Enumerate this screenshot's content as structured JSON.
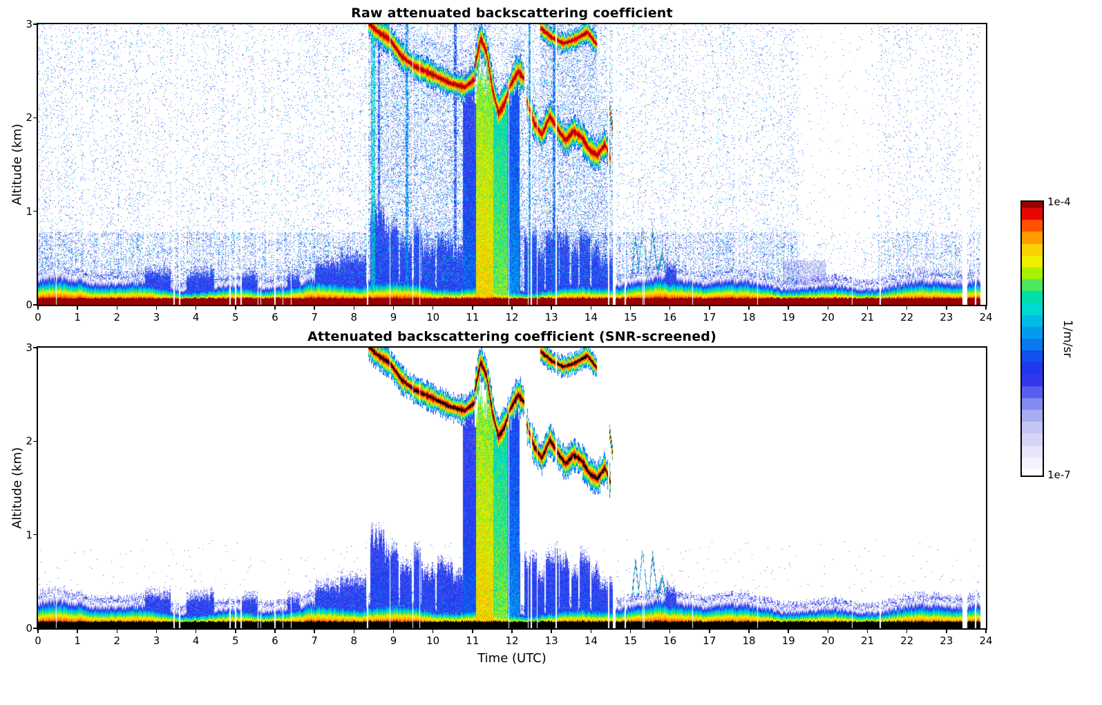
{
  "chart_data": {
    "type": "heatmap",
    "data_end": 23.85,
    "x": {
      "label": "Time (UTC)",
      "min": 0,
      "max": 24,
      "ticks": [
        "0",
        "1",
        "2",
        "3",
        "4",
        "5",
        "6",
        "7",
        "8",
        "9",
        "10",
        "11",
        "12",
        "13",
        "14",
        "15",
        "16",
        "17",
        "18",
        "19",
        "20",
        "21",
        "22",
        "23",
        "24"
      ]
    },
    "y": {
      "label": "Altitude (km)",
      "min": 0,
      "max": 3,
      "ticks": [
        "0",
        "1",
        "2",
        "3"
      ]
    },
    "value": {
      "scale": "log",
      "min": 1e-07,
      "max": 0.0001
    },
    "panels": [
      {
        "title": "Raw attenuated backscattering coefficient",
        "screened": false
      },
      {
        "title": "Attenuated backscattering coefficient (SNR-screened)",
        "screened": true,
        "xlabel": "Time (UTC)"
      }
    ],
    "colorbar": {
      "unit": "1/m/sr",
      "max_label": "1e-4",
      "min_label": "1e-7",
      "stops": [
        [
          0.0,
          "#ffffff"
        ],
        [
          0.06,
          "#efeefb"
        ],
        [
          0.12,
          "#ddd8f7"
        ],
        [
          0.18,
          "#c2c3f5"
        ],
        [
          0.24,
          "#98a0f0"
        ],
        [
          0.3,
          "#5a64ee"
        ],
        [
          0.36,
          "#2a2cee"
        ],
        [
          0.42,
          "#1542f0"
        ],
        [
          0.48,
          "#0a7af0"
        ],
        [
          0.54,
          "#00aaf0"
        ],
        [
          0.6,
          "#00d8d8"
        ],
        [
          0.66,
          "#00e0a0"
        ],
        [
          0.7,
          "#55e855"
        ],
        [
          0.74,
          "#aaf000"
        ],
        [
          0.78,
          "#f0f000"
        ],
        [
          0.84,
          "#ffc800"
        ],
        [
          0.88,
          "#ff8c00"
        ],
        [
          0.92,
          "#ff4600"
        ],
        [
          0.96,
          "#e60000"
        ],
        [
          1.0,
          "#990000"
        ]
      ]
    },
    "features": {
      "cloud_paths": [
        {
          "w": 0.13,
          "pts": [
            [
              8.35,
              3.02
            ],
            [
              8.6,
              2.92
            ],
            [
              8.9,
              2.84
            ],
            [
              9.2,
              2.66
            ],
            [
              9.5,
              2.56
            ],
            [
              9.8,
              2.5
            ],
            [
              10.1,
              2.44
            ],
            [
              10.45,
              2.37
            ],
            [
              10.8,
              2.33
            ],
            [
              11.05,
              2.42
            ]
          ]
        },
        {
          "w": 0.17,
          "pts": [
            [
              11.05,
              2.55
            ],
            [
              11.2,
              2.85
            ],
            [
              11.35,
              2.7
            ],
            [
              11.5,
              2.3
            ],
            [
              11.65,
              2.05
            ],
            [
              11.8,
              2.15
            ],
            [
              11.95,
              2.35
            ],
            [
              12.15,
              2.5
            ],
            [
              12.3,
              2.42
            ]
          ]
        },
        {
          "w": 0.15,
          "pts": [
            [
              12.35,
              2.2
            ],
            [
              12.55,
              1.95
            ],
            [
              12.75,
              1.82
            ],
            [
              12.95,
              2.02
            ],
            [
              13.15,
              1.88
            ],
            [
              13.35,
              1.76
            ],
            [
              13.55,
              1.86
            ],
            [
              13.75,
              1.8
            ],
            [
              13.95,
              1.66
            ],
            [
              14.15,
              1.6
            ],
            [
              14.35,
              1.72
            ],
            [
              14.5,
              1.55
            ]
          ]
        },
        {
          "w": 0.1,
          "pts": [
            [
              12.7,
              2.97
            ],
            [
              13.0,
              2.86
            ],
            [
              13.3,
              2.8
            ],
            [
              13.6,
              2.84
            ],
            [
              13.9,
              2.92
            ],
            [
              14.15,
              2.78
            ]
          ]
        },
        {
          "w": 0.07,
          "pts": [
            [
              14.45,
              2.15
            ],
            [
              14.55,
              1.85
            ],
            [
              14.62,
              1.55
            ]
          ]
        }
      ],
      "precip_columns": [
        [
          10.75,
          11.08,
          2.35,
          -5.7
        ],
        [
          11.08,
          11.52,
          2.45,
          -4.55
        ],
        [
          11.52,
          11.88,
          2.2,
          -4.85
        ],
        [
          11.88,
          12.18,
          2.35,
          -5.5
        ]
      ],
      "bl_blobs": [
        [
          2.7,
          3.35,
          0.34
        ],
        [
          3.75,
          4.45,
          0.33
        ],
        [
          5.15,
          5.55,
          0.3
        ],
        [
          6.3,
          6.6,
          0.3
        ],
        [
          7.0,
          7.65,
          0.42
        ],
        [
          7.65,
          8.3,
          0.5
        ],
        [
          8.4,
          8.78,
          0.95
        ],
        [
          8.78,
          9.12,
          0.8
        ],
        [
          9.15,
          9.45,
          0.62
        ],
        [
          9.5,
          9.68,
          0.8
        ],
        [
          9.7,
          10.05,
          0.58
        ],
        [
          10.08,
          10.5,
          0.65
        ],
        [
          10.5,
          10.75,
          0.55
        ],
        [
          10.75,
          12.2,
          0.82
        ],
        [
          12.3,
          12.62,
          0.72
        ],
        [
          12.62,
          12.82,
          0.55
        ],
        [
          12.85,
          13.18,
          0.78
        ],
        [
          13.2,
          13.45,
          0.7
        ],
        [
          13.5,
          13.67,
          0.58
        ],
        [
          13.7,
          13.97,
          0.72
        ],
        [
          14.0,
          14.22,
          0.6
        ],
        [
          14.22,
          14.55,
          0.45
        ],
        [
          15.9,
          16.15,
          0.4
        ]
      ],
      "streaks": [
        {
          "w": 0.055,
          "pts": [
            [
              15.02,
              0.3
            ],
            [
              15.12,
              0.72
            ],
            [
              15.2,
              0.4
            ],
            [
              15.3,
              0.85
            ],
            [
              15.42,
              0.35
            ]
          ]
        },
        {
          "w": 0.055,
          "pts": [
            [
              15.45,
              0.3
            ],
            [
              15.55,
              0.78
            ],
            [
              15.68,
              0.35
            ],
            [
              15.8,
              0.55
            ],
            [
              15.9,
              0.3
            ]
          ]
        }
      ],
      "raw_columns": [
        [
          8.47,
          0.05,
          -5.25
        ],
        [
          8.62,
          0.03,
          -5.7
        ],
        [
          9.33,
          0.035,
          -5.5
        ],
        [
          10.56,
          0.03,
          -5.8
        ],
        [
          12.43,
          0.045,
          -5.5
        ],
        [
          13.06,
          0.035,
          -5.6
        ]
      ],
      "faint_patch": [
        18.85,
        19.95,
        0.22,
        0.48
      ],
      "gaps": [
        [
          3.42,
          3.46
        ],
        [
          3.56,
          3.59
        ],
        [
          4.83,
          4.87
        ],
        [
          4.97,
          5.01
        ],
        [
          5.12,
          5.15
        ],
        [
          5.55,
          5.58
        ],
        [
          5.62,
          5.65
        ],
        [
          5.98,
          6.01
        ],
        [
          6.18,
          6.2
        ],
        [
          8.31,
          8.36
        ],
        [
          8.9,
          8.92
        ],
        [
          9.64,
          9.66
        ],
        [
          11.9,
          11.93
        ],
        [
          12.46,
          12.49
        ],
        [
          13.1,
          13.12
        ],
        [
          14.42,
          14.45
        ],
        [
          14.55,
          14.62
        ],
        [
          14.85,
          14.88
        ],
        [
          15.3,
          15.32
        ],
        [
          16.55,
          16.57
        ],
        [
          18.2,
          18.22
        ],
        [
          20.6,
          20.62
        ],
        [
          21.3,
          21.33
        ],
        [
          23.4,
          23.52
        ],
        [
          23.72,
          23.75
        ]
      ]
    }
  }
}
